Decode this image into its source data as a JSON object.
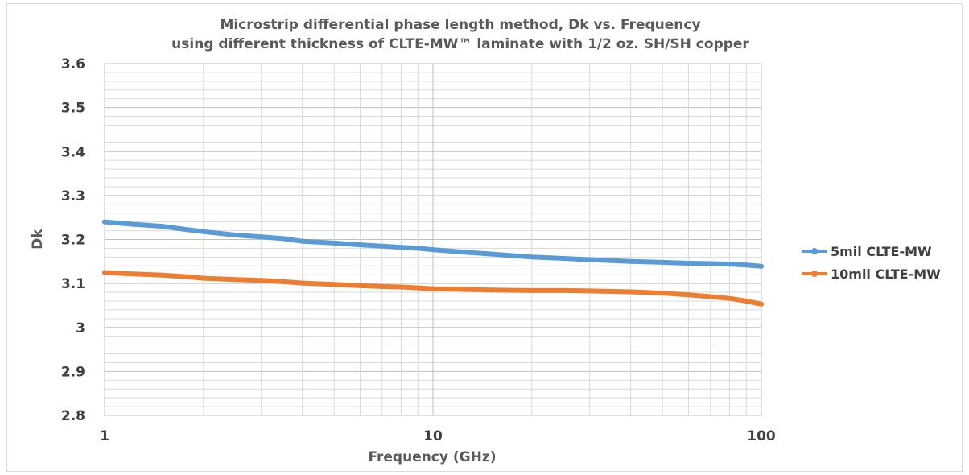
{
  "chart_data": {
    "type": "line",
    "title_lines": [
      "Microstrip differential phase length method, Dk vs. Frequency",
      "using different thickness of CLTE-MW™ laminate with 1/2 oz. SH/SH copper"
    ],
    "xlabel": "Frequency (GHz)",
    "ylabel": "Dk",
    "x_scale": "log",
    "xlim": [
      1,
      100
    ],
    "ylim": [
      2.8,
      3.6
    ],
    "x_ticks": [
      1,
      10,
      100
    ],
    "x_tick_labels": [
      "1",
      "10",
      "100"
    ],
    "y_ticks": [
      2.8,
      2.9,
      3.0,
      3.1,
      3.2,
      3.3,
      3.4,
      3.5,
      3.6
    ],
    "y_tick_labels": [
      "2.8",
      "2.9",
      "3",
      "3.1",
      "3.2",
      "3.3",
      "3.4",
      "3.5",
      "3.6"
    ],
    "y_minor_step": 0.02,
    "grid": true,
    "legend_position": "right",
    "series": [
      {
        "name": "5mil CLTE-MW",
        "color": "#5B9BD5",
        "x": [
          1,
          1.2,
          1.5,
          1.8,
          2,
          2.5,
          3,
          3.5,
          4,
          5,
          6,
          7,
          8,
          9,
          10,
          12,
          15,
          20,
          25,
          30,
          40,
          50,
          60,
          70,
          80,
          90,
          100
        ],
        "y": [
          3.24,
          3.235,
          3.23,
          3.222,
          3.218,
          3.21,
          3.206,
          3.202,
          3.196,
          3.192,
          3.188,
          3.185,
          3.182,
          3.18,
          3.177,
          3.172,
          3.167,
          3.16,
          3.157,
          3.154,
          3.15,
          3.148,
          3.146,
          3.145,
          3.144,
          3.142,
          3.139
        ]
      },
      {
        "name": "10mil CLTE-MW",
        "color": "#ED7D31",
        "x": [
          1,
          1.2,
          1.5,
          1.8,
          2,
          2.5,
          3,
          3.5,
          4,
          5,
          6,
          7,
          8,
          9,
          10,
          12,
          15,
          20,
          25,
          30,
          40,
          50,
          60,
          70,
          80,
          90,
          100
        ],
        "y": [
          3.125,
          3.122,
          3.119,
          3.115,
          3.112,
          3.109,
          3.107,
          3.104,
          3.101,
          3.098,
          3.095,
          3.093,
          3.092,
          3.09,
          3.088,
          3.087,
          3.085,
          3.084,
          3.084,
          3.083,
          3.081,
          3.078,
          3.074,
          3.07,
          3.066,
          3.06,
          3.053
        ]
      }
    ]
  }
}
